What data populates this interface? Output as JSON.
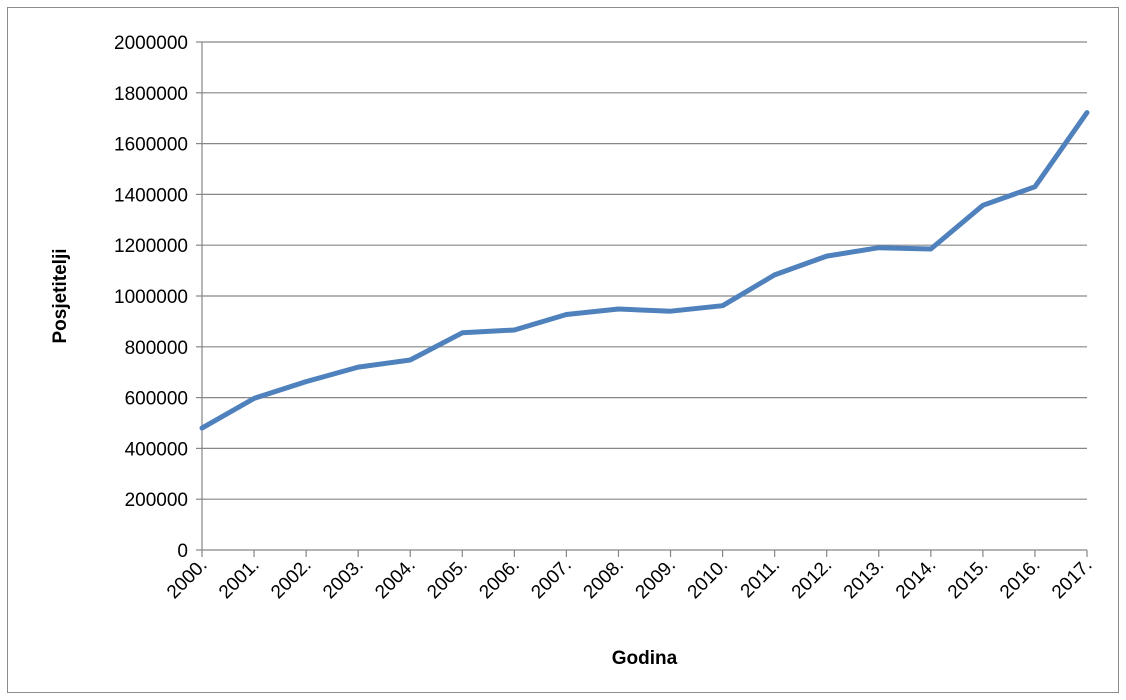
{
  "chart_data": {
    "type": "line",
    "title": "",
    "xlabel": "Godina",
    "ylabel": "Posjetitelji",
    "ylim": [
      0,
      2000000
    ],
    "yticks": [
      "0",
      "200000",
      "400000",
      "600000",
      "800000",
      "1000000",
      "1200000",
      "1400000",
      "1600000",
      "1800000",
      "2000000"
    ],
    "categories": [
      "2000.",
      "2001.",
      "2002.",
      "2003.",
      "2004.",
      "2005.",
      "2006.",
      "2007.",
      "2008.",
      "2009.",
      "2010.",
      "2011.",
      "2012.",
      "2013.",
      "2014.",
      "2015.",
      "2016.",
      "2017."
    ],
    "series": [
      {
        "name": "",
        "color": "#4f81bd",
        "values": [
          480000,
          597000,
          663000,
          720000,
          748000,
          855000,
          866000,
          927000,
          949000,
          940000,
          962000,
          1083000,
          1157000,
          1190000,
          1185000,
          1357000,
          1430000,
          1722000
        ]
      }
    ],
    "grid": true,
    "legend": "none",
    "gridline_color": "#868686"
  }
}
